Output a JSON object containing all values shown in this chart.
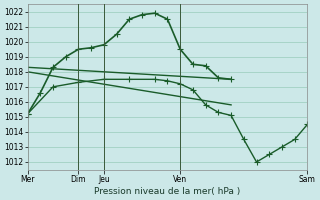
{
  "background_color": "#cce8e8",
  "grid_color": "#99ccbb",
  "line_color": "#1a5c2a",
  "ylabel_min": 1012,
  "ylabel_max": 1022,
  "ytick_step": 1,
  "xlabel": "Pression niveau de la mer( hPa )",
  "series": [
    {
      "x": [
        0,
        0.5,
        1.0,
        1.5,
        2.0,
        2.5,
        3.0,
        3.5,
        4.0,
        4.5,
        5.0,
        5.5,
        6.0,
        6.5,
        7.0,
        7.5,
        8.0
      ],
      "y": [
        1015.2,
        1016.6,
        1018.3,
        1019.0,
        1019.5,
        1019.6,
        1019.8,
        1020.5,
        1021.5,
        1021.8,
        1021.9,
        1021.5,
        1019.5,
        1018.5,
        1018.4,
        1017.6,
        1017.5
      ],
      "marker": "+",
      "linewidth": 1.2,
      "markersize": 4
    },
    {
      "x": [
        0,
        8
      ],
      "y": [
        1018.3,
        1017.5
      ],
      "marker": null,
      "linewidth": 1.0,
      "markersize": 0
    },
    {
      "x": [
        0,
        8
      ],
      "y": [
        1018.0,
        1015.8
      ],
      "marker": null,
      "linewidth": 1.0,
      "markersize": 0
    },
    {
      "x": [
        0,
        1.0,
        2.0,
        3.0,
        4.0,
        5.0,
        5.5,
        6.0,
        6.5,
        7.0,
        7.5,
        8.0,
        8.5,
        9.0,
        9.5,
        10.0,
        10.5,
        11.0
      ],
      "y": [
        1015.2,
        1017.0,
        1017.3,
        1017.5,
        1017.5,
        1017.5,
        1017.4,
        1017.2,
        1016.8,
        1015.8,
        1015.3,
        1015.1,
        1013.5,
        1012.0,
        1012.5,
        1013.0,
        1013.5,
        1014.5
      ],
      "marker": "+",
      "linewidth": 1.0,
      "markersize": 4
    }
  ],
  "vline_positions": [
    2.0,
    3.0,
    6.0
  ],
  "xtick_positions": [
    0,
    2.0,
    3.0,
    6.0,
    11.0
  ],
  "xtick_labels": [
    "Mer",
    "Dim",
    "Jeu",
    "Ven",
    "Sam"
  ],
  "xlim": [
    0,
    11.0
  ],
  "ylim": [
    1011.5,
    1022.5
  ]
}
